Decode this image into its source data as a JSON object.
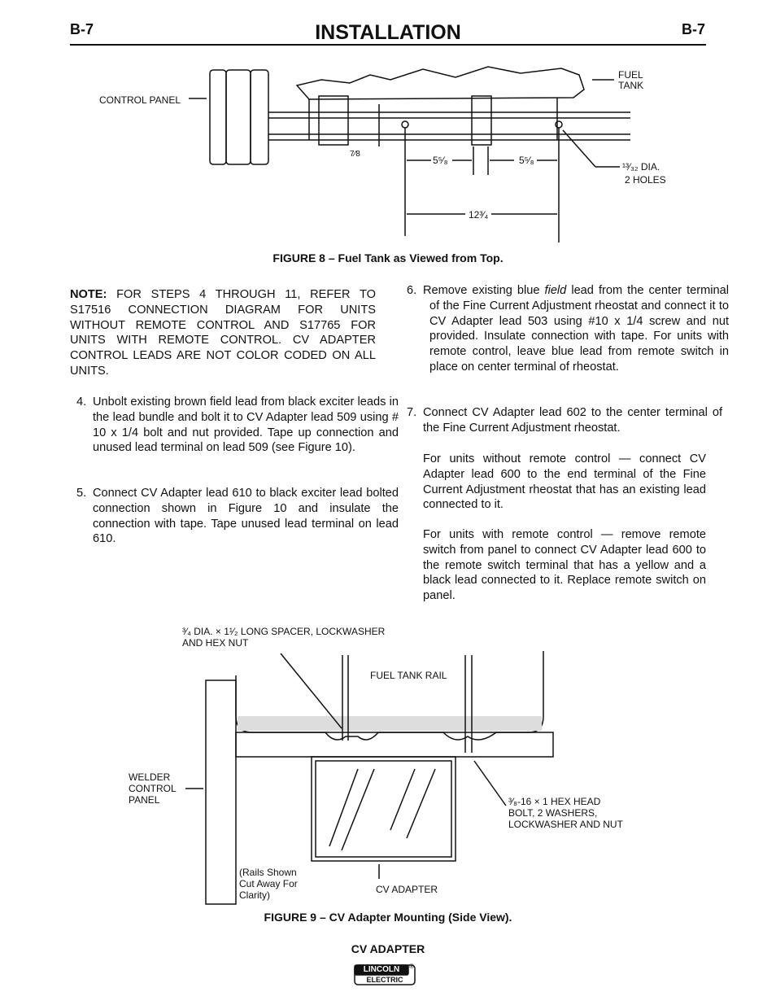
{
  "header": {
    "left": "B-7",
    "title": "INSTALLATION",
    "right": "B-7"
  },
  "figure8": {
    "labels": {
      "control_panel": "CONTROL PANEL",
      "fuel": "FUEL",
      "tank": "TANK",
      "dim_left": "7⁄8",
      "dim_a": "5⁵⁄₈",
      "dim_b": "5⁵⁄₈",
      "dim_total": "12³⁄₄",
      "hole_dia": "¹³⁄₃₂ DIA.",
      "holes": "2 HOLES"
    },
    "caption": "FIGURE 8 – Fuel Tank as Viewed from Top."
  },
  "note": {
    "label": "NOTE:",
    "text": "FOR STEPS 4 THROUGH 11, REFER TO S17516 CONNECTION DIAGRAM FOR UNITS WITHOUT REMOTE CONTROL AND S17765 FOR UNITS WITH REMOTE CONTROL. CV ADAPTER CONTROL LEADS ARE NOT COLOR CODED ON ALL UNITS."
  },
  "steps": [
    {
      "number": "4.",
      "text": "Unbolt existing brown field lead from black exciter leads in the lead bundle and bolt it to CV Adapter lead 509 using # 10 x 1/4 bolt and nut provided. Tape up connection and unused lead terminal on lead 509 (see Figure 10)."
    },
    {
      "number": "5.",
      "text": "Connect CV Adapter lead 610 to black exciter lead bolted connection shown in Figure 10 and insulate the connection with tape. Tape unused lead terminal on lead 610."
    },
    {
      "number": "6.",
      "text_before": "Remove existing blue",
      "italic": "field",
      "text_after": "lead from the center terminal of the Fine Current Adjustment rheostat and connect it to CV Adapter lead 503 using #10 x 1/4 screw and nut provided. Insulate connection with tape. For units with remote control, leave blue lead from remote switch in place on center terminal of rheostat."
    },
    {
      "number": "7.",
      "text": "Connect CV Adapter lead 602 to the center terminal of the Fine Current Adjustment rheostat.",
      "paragraphs": [
        "For units without remote control — connect CV Adapter lead 600 to the end terminal of the Fine Current Adjustment rheostat that has an existing lead connected to it.",
        "For units with remote control — remove remote switch from panel to connect CV Adapter lead 600 to the remote switch terminal that has a yellow and a black lead connected to it. Replace remote switch on panel."
      ]
    }
  ],
  "figure9": {
    "labels": {
      "spacer_1": "³⁄₄ DIA. × 1¹⁄₂ LONG SPACER, LOCKWASHER",
      "spacer_2": "AND HEX NUT",
      "rail": "FUEL TANK RAIL",
      "welder_1": "WELDER",
      "welder_2": "CONTROL",
      "welder_3": "PANEL",
      "bolt_1": "³⁄₈-16 × 1 HEX HEAD",
      "bolt_2": "BOLT, 2 WASHERS,",
      "bolt_3": "LOCKWASHER AND NUT",
      "rails_1": "(Rails Shown",
      "rails_2": "Cut Away For",
      "rails_3": "Clarity)",
      "adapter": "CV ADAPTER"
    },
    "caption": "FIGURE 9 – CV Adapter Mounting (Side View)."
  },
  "footer": {
    "product": "CV ADAPTER",
    "logo_top": "LINCOLN",
    "logo_mark": "®",
    "logo_bottom": "ELECTRIC"
  }
}
